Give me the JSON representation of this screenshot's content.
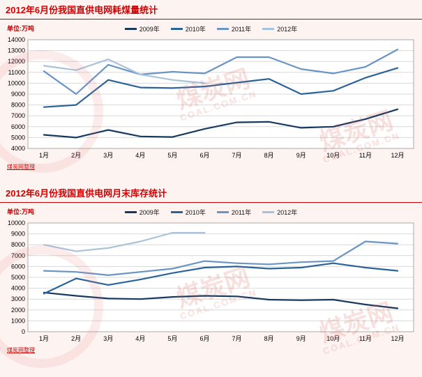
{
  "watermark": {
    "cn": "煤炭网",
    "en": "COAL.COM.CN"
  },
  "charts": [
    {
      "unit_label": "单位:万吨",
      "source_note": "煤炭网整理"
    },
    {
      "unit_label": "单位:万吨",
      "source_note": "煤炭网整理"
    }
  ],
  "chart_data": [
    {
      "type": "line",
      "title": "2012年6月份我国直供电网耗煤量统计",
      "categories": [
        "1月",
        "2月",
        "3月",
        "4月",
        "5月",
        "6月",
        "7月",
        "8月",
        "9月",
        "10月",
        "11月",
        "12月"
      ],
      "ylim": [
        4000,
        14000
      ],
      "ytick_step": 1000,
      "grid": true,
      "legend_position": "top",
      "ylabel": "万吨",
      "series": [
        {
          "name": "2009年",
          "color": "#17395e",
          "values": [
            5250,
            5000,
            5700,
            5100,
            5050,
            5800,
            6400,
            6450,
            5900,
            6000,
            6700,
            7600
          ]
        },
        {
          "name": "2010年",
          "color": "#2b6399",
          "values": [
            7800,
            8000,
            10300,
            9600,
            9550,
            9700,
            10050,
            10400,
            9000,
            9300,
            10500,
            11400
          ]
        },
        {
          "name": "2011年",
          "color": "#6a94c4",
          "values": [
            11100,
            9000,
            11700,
            10800,
            11050,
            10900,
            12400,
            12400,
            11300,
            10900,
            11500,
            13100
          ]
        },
        {
          "name": "2012年",
          "color": "#a9c2dc",
          "values": [
            11600,
            11200,
            12200,
            10800,
            10300,
            10000
          ]
        }
      ]
    },
    {
      "type": "line",
      "title": "2012年6月份我国直供电网月末库存统计",
      "categories": [
        "1月",
        "2月",
        "3月",
        "4月",
        "5月",
        "6月",
        "7月",
        "8月",
        "9月",
        "10月",
        "11月",
        "12月"
      ],
      "ylim": [
        0,
        10000
      ],
      "ytick_step": 1000,
      "grid": true,
      "legend_position": "top",
      "ylabel": "万吨",
      "series": [
        {
          "name": "2009年",
          "color": "#17395e",
          "values": [
            3600,
            3300,
            3050,
            3000,
            3200,
            3300,
            3250,
            2950,
            2900,
            2950,
            2500,
            2150
          ]
        },
        {
          "name": "2010年",
          "color": "#2b6399",
          "values": [
            3500,
            4900,
            4300,
            4800,
            5400,
            5900,
            6000,
            5800,
            5900,
            6300,
            5900,
            5600
          ]
        },
        {
          "name": "2011年",
          "color": "#6a94c4",
          "values": [
            5600,
            5500,
            5200,
            5500,
            5800,
            6500,
            6300,
            6200,
            6400,
            6500,
            8300,
            8100
          ]
        },
        {
          "name": "2012年",
          "color": "#a9c2dc",
          "values": [
            8000,
            7400,
            7700,
            8300,
            9100,
            9100
          ]
        }
      ]
    }
  ]
}
